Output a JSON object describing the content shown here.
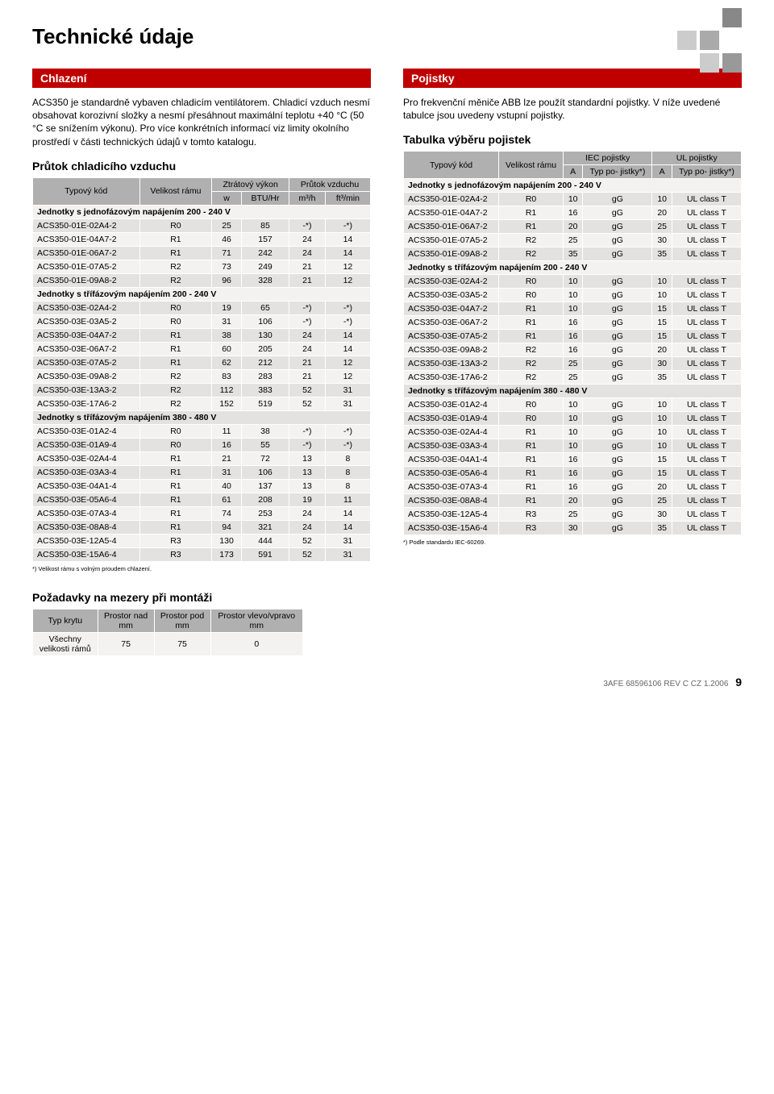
{
  "page_title": "Technické údaje",
  "footer": {
    "ref": "3AFE 68596106 REV C CZ 1.2006",
    "page": "9"
  },
  "left": {
    "section1_title": "Chlazení",
    "section1_text": "ACS350 je standardně vybaven chladicím ventilátorem. Chladicí vzduch nesmí obsahovat korozivní složky a nesmí přesáhnout maximální teplotu +40 °C (50 °C se snížením výkonu). Pro více konkrétních informací viz limity okolního prostředí v části technických údajů v tomto katalogu.",
    "airflow_heading": "Průtok chladicího vzduchu",
    "airflow_headers": {
      "type_code": "Typový kód",
      "frame": "Velikost rámu",
      "heat": "Ztrátový výkon",
      "airflow": "Průtok vzduchu",
      "w": "w",
      "btu": "BTU/Hr",
      "m3h": "m³/h",
      "ft3min": "ft³/min"
    },
    "airflow_sections": [
      {
        "label": "Jednotky s jednofázovým napájením 200 - 240 V",
        "rows": [
          [
            "ACS350-01E-02A4-2",
            "R0",
            "25",
            "85",
            "-*)",
            "-*)"
          ],
          [
            "ACS350-01E-04A7-2",
            "R1",
            "46",
            "157",
            "24",
            "14"
          ],
          [
            "ACS350-01E-06A7-2",
            "R1",
            "71",
            "242",
            "24",
            "14"
          ],
          [
            "ACS350-01E-07A5-2",
            "R2",
            "73",
            "249",
            "21",
            "12"
          ],
          [
            "ACS350-01E-09A8-2",
            "R2",
            "96",
            "328",
            "21",
            "12"
          ]
        ]
      },
      {
        "label": "Jednotky s třífázovým napájením 200 - 240 V",
        "rows": [
          [
            "ACS350-03E-02A4-2",
            "R0",
            "19",
            "65",
            "-*)",
            "-*)"
          ],
          [
            "ACS350-03E-03A5-2",
            "R0",
            "31",
            "106",
            "-*)",
            "-*)"
          ],
          [
            "ACS350-03E-04A7-2",
            "R1",
            "38",
            "130",
            "24",
            "14"
          ],
          [
            "ACS350-03E-06A7-2",
            "R1",
            "60",
            "205",
            "24",
            "14"
          ],
          [
            "ACS350-03E-07A5-2",
            "R1",
            "62",
            "212",
            "21",
            "12"
          ],
          [
            "ACS350-03E-09A8-2",
            "R2",
            "83",
            "283",
            "21",
            "12"
          ],
          [
            "ACS350-03E-13A3-2",
            "R2",
            "112",
            "383",
            "52",
            "31"
          ],
          [
            "ACS350-03E-17A6-2",
            "R2",
            "152",
            "519",
            "52",
            "31"
          ]
        ]
      },
      {
        "label": "Jednotky s třífázovým napájením 380 - 480 V",
        "rows": [
          [
            "ACS350-03E-01A2-4",
            "R0",
            "11",
            "38",
            "-*)",
            "-*)"
          ],
          [
            "ACS350-03E-01A9-4",
            "R0",
            "16",
            "55",
            "-*)",
            "-*)"
          ],
          [
            "ACS350-03E-02A4-4",
            "R1",
            "21",
            "72",
            "13",
            "8"
          ],
          [
            "ACS350-03E-03A3-4",
            "R1",
            "31",
            "106",
            "13",
            "8"
          ],
          [
            "ACS350-03E-04A1-4",
            "R1",
            "40",
            "137",
            "13",
            "8"
          ],
          [
            "ACS350-03E-05A6-4",
            "R1",
            "61",
            "208",
            "19",
            "11"
          ],
          [
            "ACS350-03E-07A3-4",
            "R1",
            "74",
            "253",
            "24",
            "14"
          ],
          [
            "ACS350-03E-08A8-4",
            "R1",
            "94",
            "321",
            "24",
            "14"
          ],
          [
            "ACS350-03E-12A5-4",
            "R3",
            "130",
            "444",
            "52",
            "31"
          ],
          [
            "ACS350-03E-15A6-4",
            "R3",
            "173",
            "591",
            "52",
            "31"
          ]
        ]
      }
    ],
    "airflow_footnote": "*) Velikost rámu s volným proudem chlazení.",
    "spacing_heading": "Požadavky na mezery při montáži",
    "spacing_headers": [
      "Typ krytu",
      "Prostor nad\nmm",
      "Prostor pod\nmm",
      "Prostor vlevo/vpravo\nmm"
    ],
    "spacing_row": [
      "Všechny\nvelikosti rámů",
      "75",
      "75",
      "0"
    ]
  },
  "right": {
    "section_title": "Pojistky",
    "section_text": "Pro frekvenční měniče ABB lze použít standardní pojistky. V níže uvedené tabulce jsou uvedeny vstupní pojistky.",
    "fuse_heading": "Tabulka výběru pojistek",
    "fuse_headers": {
      "type_code": "Typový kód",
      "frame": "Velikost rámu",
      "iec": "IEC pojistky",
      "ul": "UL pojistky",
      "a": "A",
      "type": "Typ po-\njistky*)"
    },
    "fuse_sections": [
      {
        "label": "Jednotky s jednofázovým napájením 200 - 240 V",
        "rows": [
          [
            "ACS350-01E-02A4-2",
            "R0",
            "10",
            "gG",
            "10",
            "UL class T"
          ],
          [
            "ACS350-01E-04A7-2",
            "R1",
            "16",
            "gG",
            "20",
            "UL class T"
          ],
          [
            "ACS350-01E-06A7-2",
            "R1",
            "20",
            "gG",
            "25",
            "UL class T"
          ],
          [
            "ACS350-01E-07A5-2",
            "R2",
            "25",
            "gG",
            "30",
            "UL class T"
          ],
          [
            "ACS350-01E-09A8-2",
            "R2",
            "35",
            "gG",
            "35",
            "UL class T"
          ]
        ]
      },
      {
        "label": "Jednotky s třífázovým napájením 200 - 240 V",
        "rows": [
          [
            "ACS350-03E-02A4-2",
            "R0",
            "10",
            "gG",
            "10",
            "UL class T"
          ],
          [
            "ACS350-03E-03A5-2",
            "R0",
            "10",
            "gG",
            "10",
            "UL class T"
          ],
          [
            "ACS350-03E-04A7-2",
            "R1",
            "10",
            "gG",
            "15",
            "UL class T"
          ],
          [
            "ACS350-03E-06A7-2",
            "R1",
            "16",
            "gG",
            "15",
            "UL class T"
          ],
          [
            "ACS350-03E-07A5-2",
            "R1",
            "16",
            "gG",
            "15",
            "UL class T"
          ],
          [
            "ACS350-03E-09A8-2",
            "R2",
            "16",
            "gG",
            "20",
            "UL class T"
          ],
          [
            "ACS350-03E-13A3-2",
            "R2",
            "25",
            "gG",
            "30",
            "UL class T"
          ],
          [
            "ACS350-03E-17A6-2",
            "R2",
            "25",
            "gG",
            "35",
            "UL class T"
          ]
        ]
      },
      {
        "label": "Jednotky s třífázovým napájením 380 - 480 V",
        "rows": [
          [
            "ACS350-03E-01A2-4",
            "R0",
            "10",
            "gG",
            "10",
            "UL class T"
          ],
          [
            "ACS350-03E-01A9-4",
            "R0",
            "10",
            "gG",
            "10",
            "UL class T"
          ],
          [
            "ACS350-03E-02A4-4",
            "R1",
            "10",
            "gG",
            "10",
            "UL class T"
          ],
          [
            "ACS350-03E-03A3-4",
            "R1",
            "10",
            "gG",
            "10",
            "UL class T"
          ],
          [
            "ACS350-03E-04A1-4",
            "R1",
            "16",
            "gG",
            "15",
            "UL class T"
          ],
          [
            "ACS350-03E-05A6-4",
            "R1",
            "16",
            "gG",
            "15",
            "UL class T"
          ],
          [
            "ACS350-03E-07A3-4",
            "R1",
            "16",
            "gG",
            "20",
            "UL class T"
          ],
          [
            "ACS350-03E-08A8-4",
            "R1",
            "20",
            "gG",
            "25",
            "UL class T"
          ],
          [
            "ACS350-03E-12A5-4",
            "R3",
            "25",
            "gG",
            "30",
            "UL class T"
          ],
          [
            "ACS350-03E-15A6-4",
            "R3",
            "30",
            "gG",
            "35",
            "UL class T"
          ]
        ]
      }
    ],
    "fuse_footnote": "*) Podle standardu IEC-60269."
  },
  "colors": {
    "header_bg": "#b0b0b0",
    "row_odd": "#f4f2f0",
    "row_even": "#e4e2e0",
    "redbox": "#c00000"
  }
}
